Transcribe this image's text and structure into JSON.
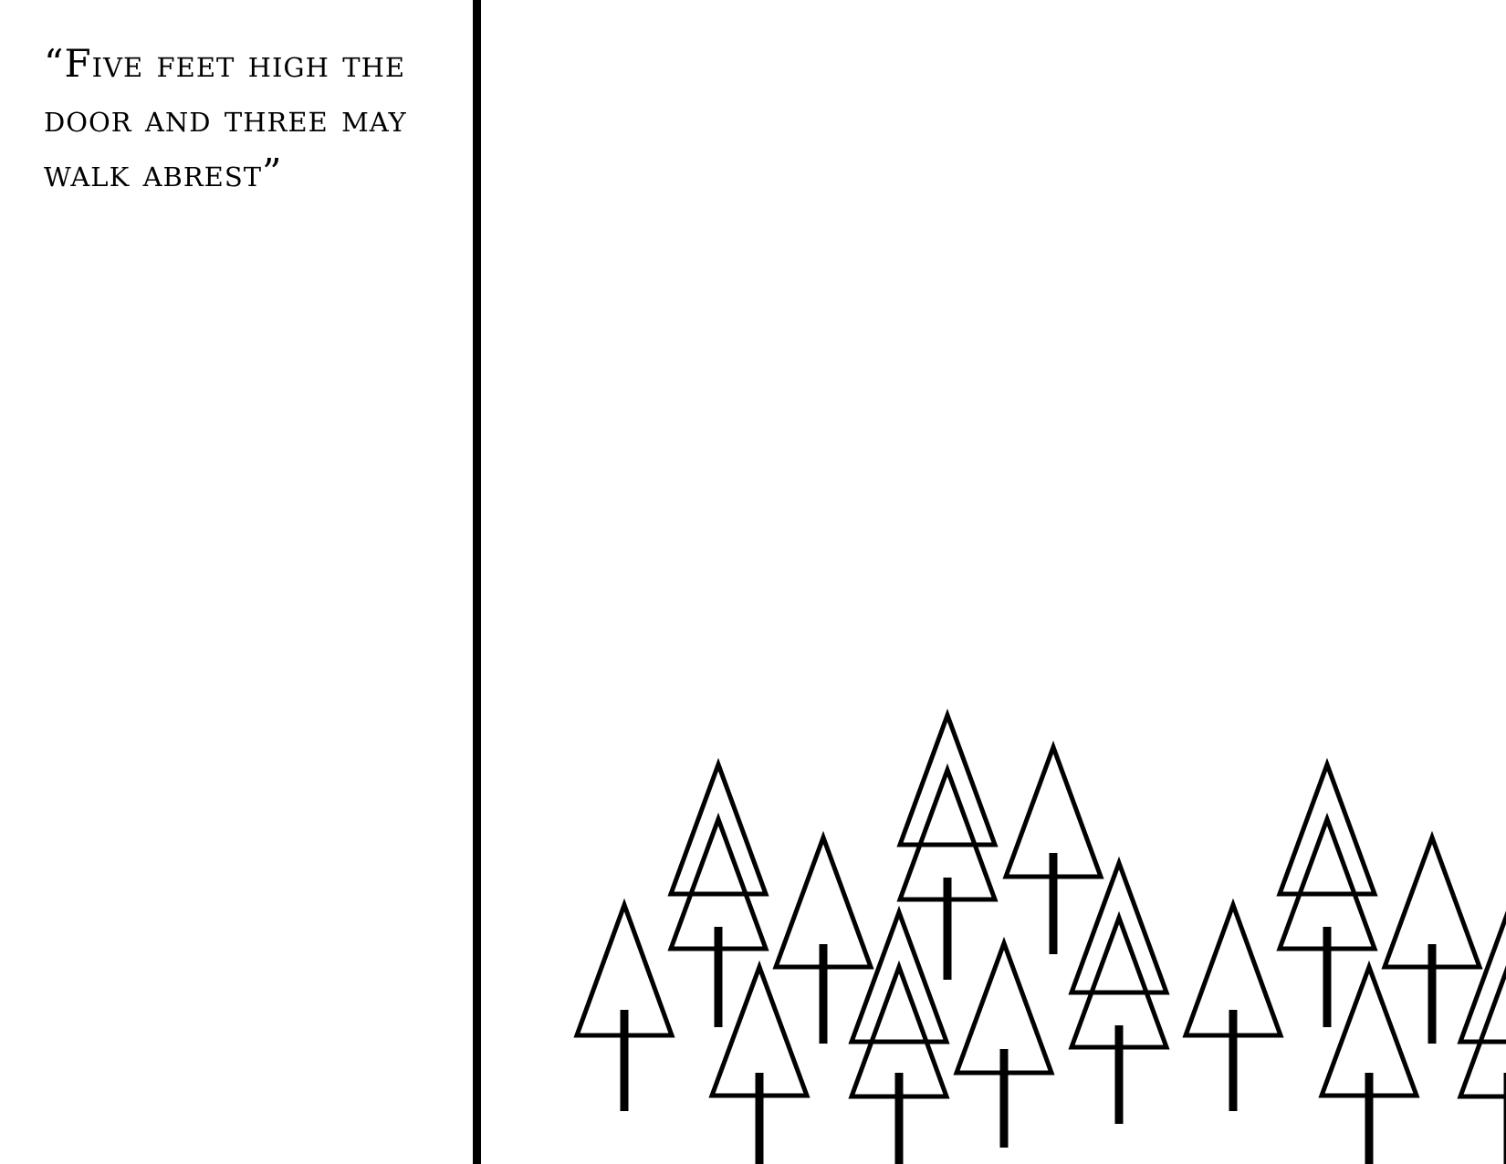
{
  "quote": {
    "text": "“Five feet high the door and three may walk abrest”"
  },
  "illustration": {
    "name": "forest-of-trees",
    "line_color": "#000000",
    "background_color": "#ffffff"
  }
}
